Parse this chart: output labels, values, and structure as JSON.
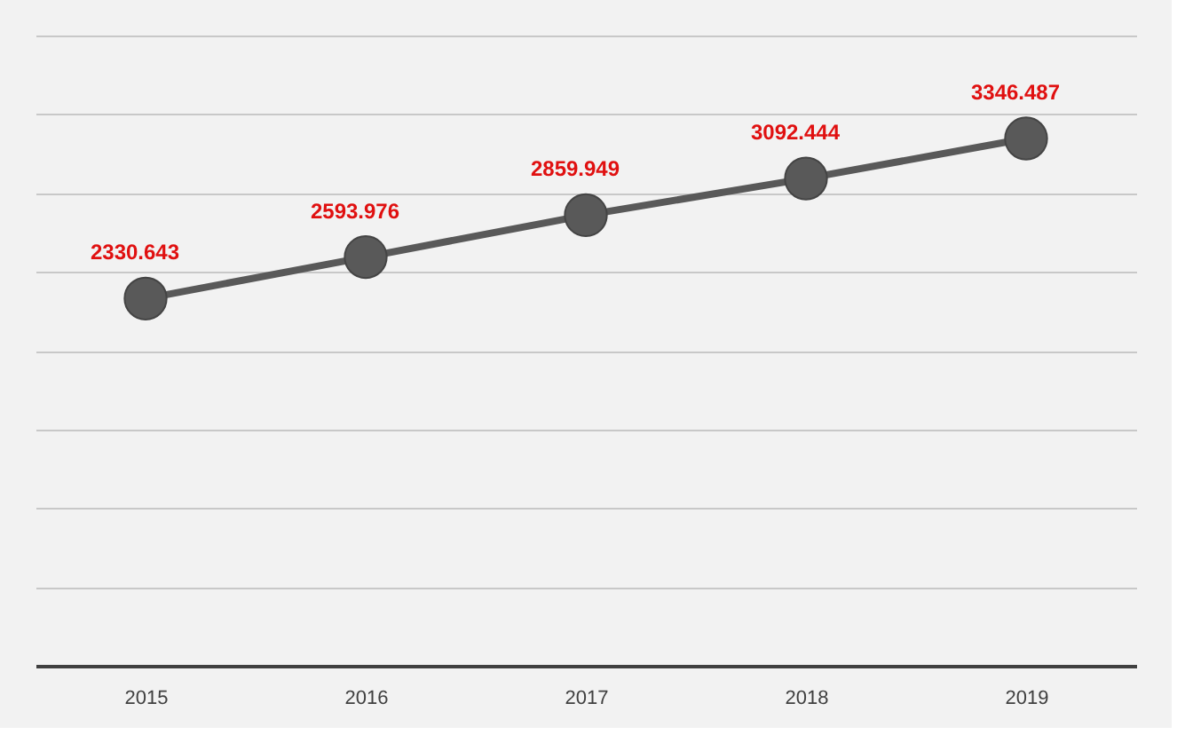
{
  "chart_data": {
    "type": "line",
    "categories": [
      "2015",
      "2016",
      "2017",
      "2018",
      "2019"
    ],
    "series": [
      {
        "color": "#595959",
        "values": [
          2330.643,
          2593.976,
          2859.949,
          3092.444,
          3346.487
        ]
      }
    ],
    "ylim": [
      0,
      4000
    ],
    "yticks": [
      {
        "value": 0,
        "label": null
      },
      {
        "value": 500,
        "label": null
      },
      {
        "value": 1000,
        "label": null
      },
      {
        "value": 1500,
        "label": null
      },
      {
        "value": 2000,
        "label": null
      },
      {
        "value": 2500,
        "label": null
      },
      {
        "value": 3000,
        "label": null
      },
      {
        "value": 3500,
        "label": null
      },
      {
        "value": 4000,
        "label": null
      }
    ],
    "tick_labels": "x",
    "grid": "y",
    "marker": "circle",
    "line_style": "solid",
    "data_labels": true,
    "legend": false
  }
}
